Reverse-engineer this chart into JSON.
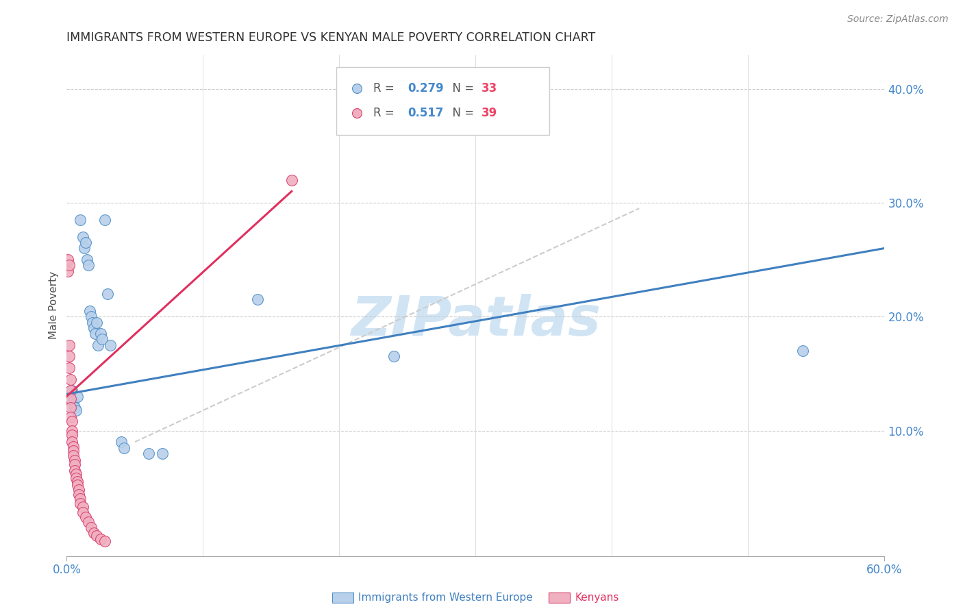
{
  "title": "IMMIGRANTS FROM WESTERN EUROPE VS KENYAN MALE POVERTY CORRELATION CHART",
  "source": "Source: ZipAtlas.com",
  "ylabel": "Male Poverty",
  "xlim": [
    0.0,
    0.6
  ],
  "ylim": [
    -0.01,
    0.43
  ],
  "xticks_show": [
    0.0,
    0.6
  ],
  "xtick_labels_show": [
    "0.0%",
    "60.0%"
  ],
  "xticks_grid": [
    0.0,
    0.1,
    0.2,
    0.3,
    0.4,
    0.5,
    0.6
  ],
  "yticks_right": [
    0.1,
    0.2,
    0.3,
    0.4
  ],
  "ytick_right_labels": [
    "10.0%",
    "20.0%",
    "30.0%",
    "40.0%"
  ],
  "legend_r1": "R = 0.279",
  "legend_n1": "N = 33",
  "legend_r2": "R = 0.517",
  "legend_n2": "N = 39",
  "blue_fill": "#b8d0ea",
  "blue_edge": "#5090c8",
  "pink_fill": "#f0b0c0",
  "pink_edge": "#d84070",
  "blue_line_color": "#4080c0",
  "pink_line_color": "#e03060",
  "diag_line_color": "#cccccc",
  "title_color": "#303030",
  "axis_label_color": "#4488cc",
  "source_color": "#888888",
  "ylabel_color": "#505050",
  "watermark_text": "ZIPatlas",
  "watermark_color": "#d0e4f4",
  "legend_text_color": "#555555",
  "legend_r_color": "#4488cc",
  "legend_n_color": "#ee4466",
  "bottom_label1": "Immigrants from Western Europe",
  "bottom_label1_color": "#4080c0",
  "bottom_label2": "Kenyans",
  "bottom_label2_color": "#e03060",
  "blue_dots": [
    [
      0.001,
      0.13
    ],
    [
      0.002,
      0.128
    ],
    [
      0.003,
      0.133
    ],
    [
      0.004,
      0.135
    ],
    [
      0.005,
      0.125
    ],
    [
      0.006,
      0.12
    ],
    [
      0.007,
      0.118
    ],
    [
      0.008,
      0.13
    ],
    [
      0.01,
      0.285
    ],
    [
      0.012,
      0.27
    ],
    [
      0.013,
      0.26
    ],
    [
      0.014,
      0.265
    ],
    [
      0.015,
      0.25
    ],
    [
      0.016,
      0.245
    ],
    [
      0.017,
      0.205
    ],
    [
      0.018,
      0.2
    ],
    [
      0.019,
      0.195
    ],
    [
      0.02,
      0.19
    ],
    [
      0.021,
      0.185
    ],
    [
      0.022,
      0.195
    ],
    [
      0.023,
      0.175
    ],
    [
      0.025,
      0.185
    ],
    [
      0.026,
      0.18
    ],
    [
      0.028,
      0.285
    ],
    [
      0.03,
      0.22
    ],
    [
      0.032,
      0.175
    ],
    [
      0.04,
      0.09
    ],
    [
      0.042,
      0.085
    ],
    [
      0.06,
      0.08
    ],
    [
      0.07,
      0.08
    ],
    [
      0.14,
      0.215
    ],
    [
      0.24,
      0.165
    ],
    [
      0.54,
      0.17
    ]
  ],
  "pink_dots": [
    [
      0.001,
      0.25
    ],
    [
      0.001,
      0.24
    ],
    [
      0.002,
      0.245
    ],
    [
      0.002,
      0.175
    ],
    [
      0.002,
      0.165
    ],
    [
      0.002,
      0.155
    ],
    [
      0.003,
      0.145
    ],
    [
      0.003,
      0.135
    ],
    [
      0.003,
      0.128
    ],
    [
      0.003,
      0.12
    ],
    [
      0.003,
      0.112
    ],
    [
      0.004,
      0.108
    ],
    [
      0.004,
      0.1
    ],
    [
      0.004,
      0.096
    ],
    [
      0.004,
      0.09
    ],
    [
      0.005,
      0.086
    ],
    [
      0.005,
      0.082
    ],
    [
      0.005,
      0.078
    ],
    [
      0.006,
      0.074
    ],
    [
      0.006,
      0.07
    ],
    [
      0.006,
      0.065
    ],
    [
      0.007,
      0.062
    ],
    [
      0.007,
      0.058
    ],
    [
      0.008,
      0.055
    ],
    [
      0.008,
      0.052
    ],
    [
      0.009,
      0.048
    ],
    [
      0.009,
      0.044
    ],
    [
      0.01,
      0.04
    ],
    [
      0.01,
      0.036
    ],
    [
      0.012,
      0.033
    ],
    [
      0.012,
      0.028
    ],
    [
      0.014,
      0.024
    ],
    [
      0.016,
      0.02
    ],
    [
      0.018,
      0.015
    ],
    [
      0.02,
      0.01
    ],
    [
      0.022,
      0.008
    ],
    [
      0.025,
      0.005
    ],
    [
      0.028,
      0.003
    ],
    [
      0.165,
      0.32
    ]
  ],
  "blue_line": [
    [
      0.0,
      0.132
    ],
    [
      0.6,
      0.26
    ]
  ],
  "pink_line": [
    [
      0.0,
      0.13
    ],
    [
      0.165,
      0.31
    ]
  ],
  "diag_line": [
    [
      0.05,
      0.09
    ],
    [
      0.42,
      0.295
    ]
  ]
}
